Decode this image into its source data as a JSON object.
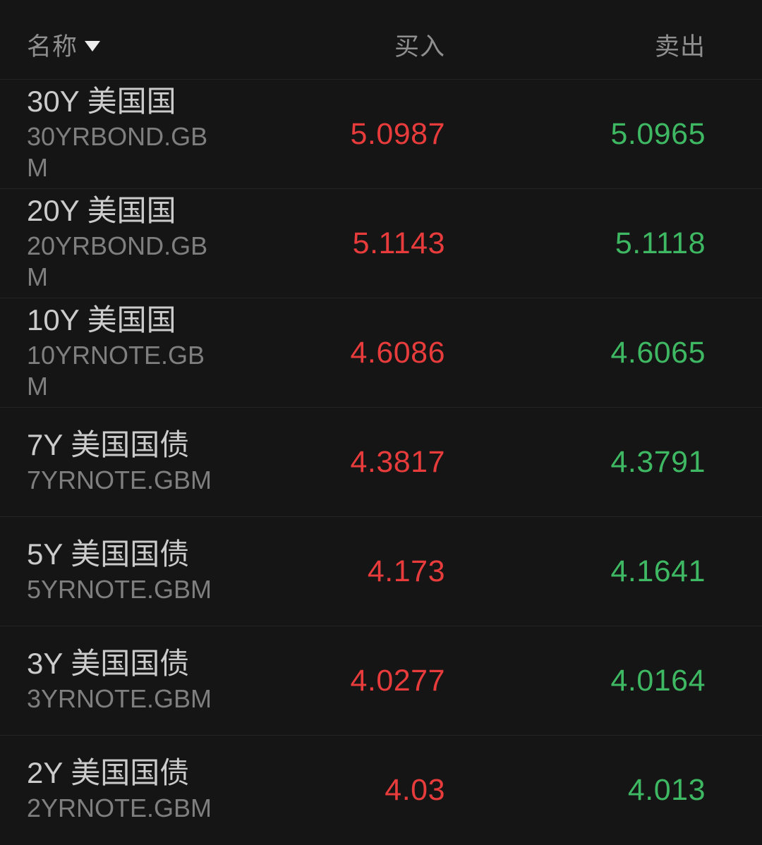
{
  "table": {
    "columns": {
      "name_label": "名称",
      "buy_label": "买入",
      "sell_label": "卖出"
    },
    "sort_icon": "sort-descending-caret",
    "colors": {
      "buy": "#e83c3c",
      "sell": "#3eb862",
      "background": "#151515",
      "divider": "#242424",
      "title_text": "#cbcbcb",
      "symbol_text": "#7f7f7f",
      "header_text": "#8f8f8f"
    },
    "rows": [
      {
        "title": "30Y 美国国",
        "symbol": "30YRBOND.GBM",
        "buy": "5.0987",
        "sell": "5.0965"
      },
      {
        "title": "20Y 美国国",
        "symbol": "20YRBOND.GBM",
        "buy": "5.1143",
        "sell": "5.1118"
      },
      {
        "title": "10Y 美国国",
        "symbol": "10YRNOTE.GBM",
        "buy": "4.6086",
        "sell": "4.6065"
      },
      {
        "title": "7Y 美国国债",
        "symbol": "7YRNOTE.GBM",
        "buy": "4.3817",
        "sell": "4.3791"
      },
      {
        "title": "5Y 美国国债",
        "symbol": "5YRNOTE.GBM",
        "buy": "4.173",
        "sell": "4.1641"
      },
      {
        "title": "3Y 美国国债",
        "symbol": "3YRNOTE.GBM",
        "buy": "4.0277",
        "sell": "4.0164"
      },
      {
        "title": "2Y 美国国债",
        "symbol": "2YRNOTE.GBM",
        "buy": "4.03",
        "sell": "4.013"
      }
    ]
  }
}
